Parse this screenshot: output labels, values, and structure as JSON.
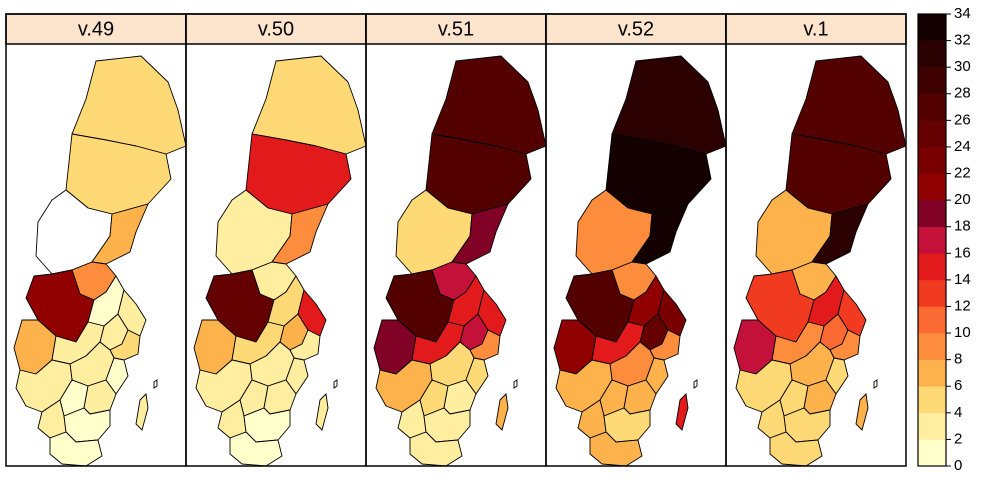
{
  "panels": [
    {
      "label": "v.49",
      "values": [
        5,
        5,
        0,
        7,
        9,
        20,
        1,
        3,
        3,
        6,
        3,
        4,
        2,
        1,
        3,
        1,
        2,
        2,
        1,
        1,
        3
      ]
    },
    {
      "label": "v.50",
      "values": [
        5,
        14,
        3,
        8,
        3,
        24,
        4,
        7,
        14,
        6,
        5,
        3,
        3,
        2,
        2,
        2,
        2,
        2,
        1,
        1,
        2
      ]
    },
    {
      "label": "v.51",
      "values": [
        26,
        26,
        5,
        18,
        16,
        26,
        14,
        17,
        14,
        18,
        14,
        8,
        5,
        5,
        6,
        5,
        3,
        3,
        3,
        3,
        7
      ]
    },
    {
      "label": "v.52",
      "values": [
        31,
        34,
        9,
        32,
        8,
        26,
        20,
        24,
        22,
        20,
        14,
        8,
        9,
        7,
        7,
        7,
        6,
        6,
        4,
        6,
        15
      ]
    },
    {
      "label": "v.1",
      "values": [
        26,
        26,
        7,
        30,
        7,
        12,
        15,
        10,
        12,
        17,
        9,
        9,
        6,
        5,
        4,
        4,
        7,
        4,
        5,
        5,
        7
      ]
    }
  ],
  "legend": {
    "ticks": [
      "0",
      "2",
      "4",
      "6",
      "8",
      "10",
      "12",
      "14",
      "16",
      "18",
      "20",
      "22",
      "24",
      "26",
      "28",
      "30",
      "32",
      "34"
    ],
    "colors": [
      "#ffffcc",
      "#ffeda0",
      "#fed976",
      "#feb24c",
      "#fd8d3c",
      "#fc6a34",
      "#f03b20",
      "#e31a1c",
      "#c4113a",
      "#800026",
      "#900000",
      "#7a0000",
      "#650000",
      "#520000",
      "#3f0000",
      "#2b0000",
      "#150000"
    ]
  }
}
